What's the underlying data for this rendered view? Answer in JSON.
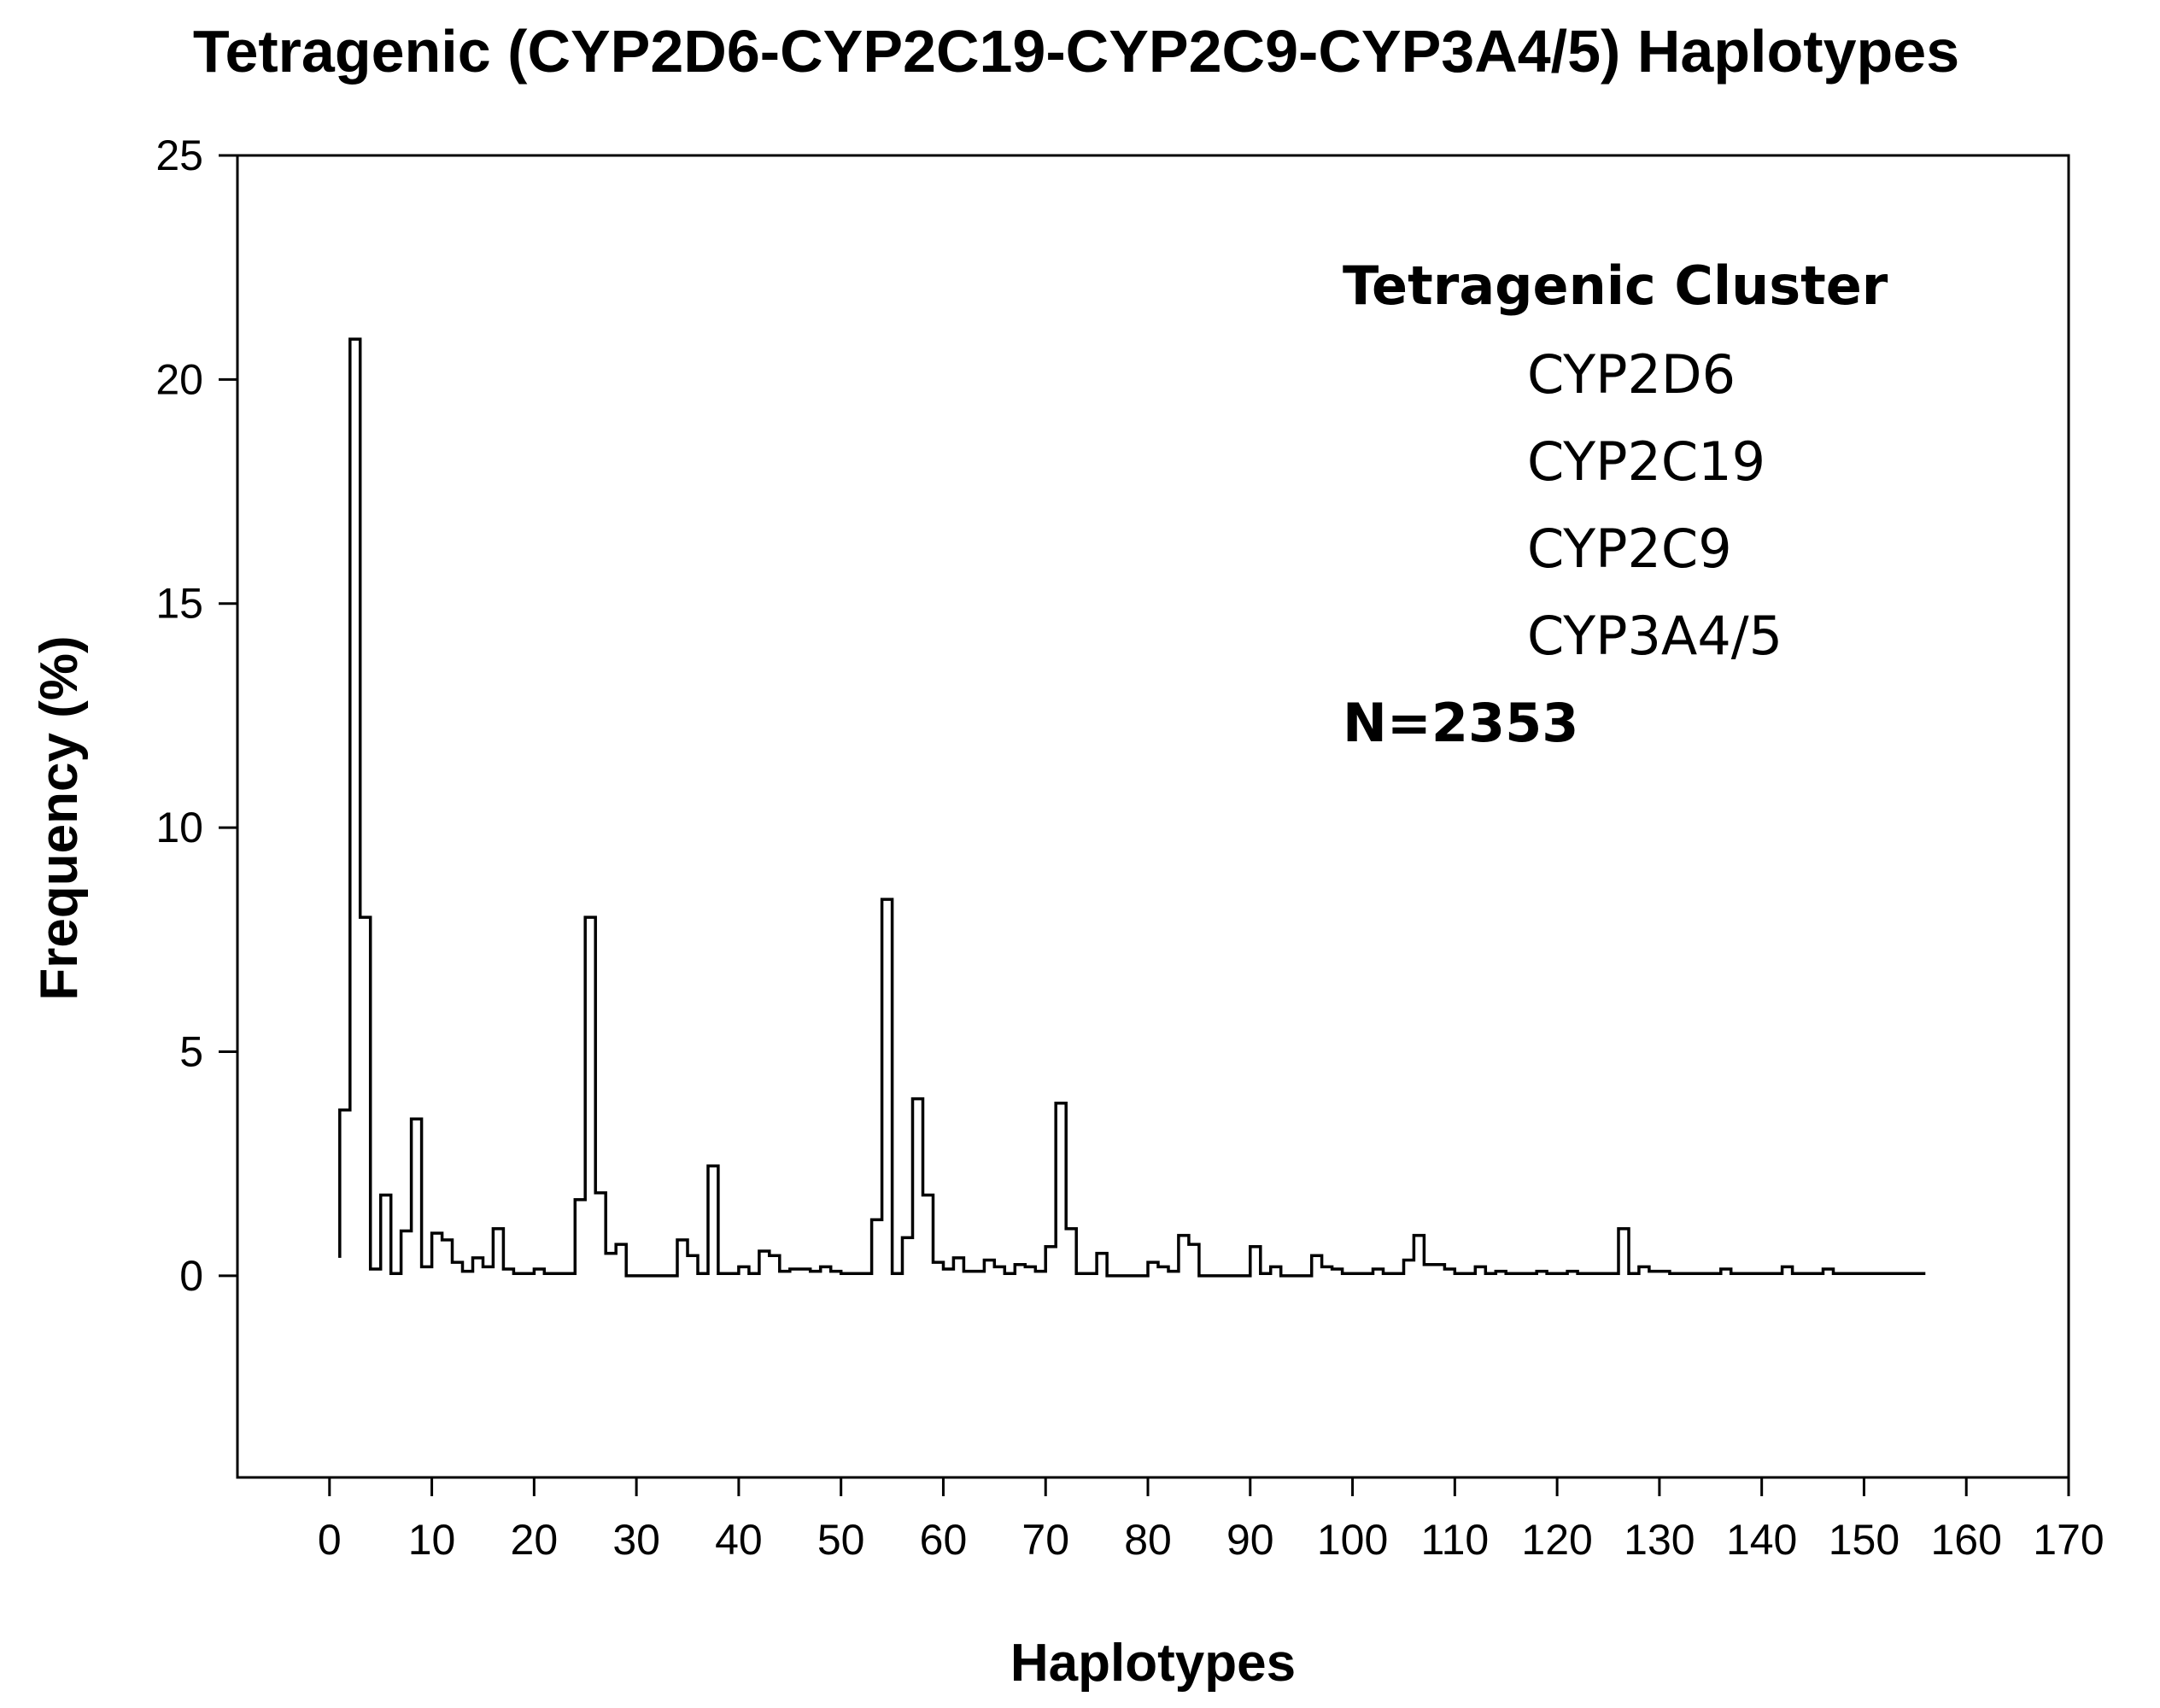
{
  "chart_data": {
    "type": "line",
    "title": "Tetragenic (CYP2D6-CYP2C19-CYP2C9-CYP3A4/5) Haplotypes",
    "xlabel": "Haplotypes",
    "ylabel": "Frequency (%)",
    "xlim": [
      -9,
      170
    ],
    "ylim": [
      -4.5,
      25
    ],
    "x_ticks": [
      0,
      10,
      20,
      30,
      40,
      50,
      60,
      70,
      80,
      90,
      100,
      110,
      120,
      130,
      140,
      150,
      160,
      170
    ],
    "y_ticks": [
      0,
      5,
      10,
      15,
      20,
      25
    ],
    "grid": false,
    "line_style": "step",
    "series": [
      {
        "values": [
          [
            1,
            0.4
          ],
          [
            1,
            3.7
          ],
          [
            2,
            3.7
          ],
          [
            2,
            20.9
          ],
          [
            3,
            20.9
          ],
          [
            3,
            8.0
          ],
          [
            4,
            8.0
          ],
          [
            4,
            0.15
          ],
          [
            5,
            0.15
          ],
          [
            5,
            1.8
          ],
          [
            6,
            1.8
          ],
          [
            6,
            0.05
          ],
          [
            7,
            0.05
          ],
          [
            7,
            1.0
          ],
          [
            8,
            1.0
          ],
          [
            8,
            3.5
          ],
          [
            9,
            3.5
          ],
          [
            9,
            0.2
          ],
          [
            10,
            0.2
          ],
          [
            10,
            0.95
          ],
          [
            11,
            0.95
          ],
          [
            11,
            0.8
          ],
          [
            12,
            0.8
          ],
          [
            12,
            0.3
          ],
          [
            13,
            0.3
          ],
          [
            13,
            0.1
          ],
          [
            14,
            0.1
          ],
          [
            14,
            0.4
          ],
          [
            15,
            0.4
          ],
          [
            15,
            0.2
          ],
          [
            16,
            0.2
          ],
          [
            16,
            1.05
          ],
          [
            17,
            1.05
          ],
          [
            17,
            0.15
          ],
          [
            18,
            0.15
          ],
          [
            18,
            0.05
          ],
          [
            20,
            0.05
          ],
          [
            20,
            0.15
          ],
          [
            21,
            0.15
          ],
          [
            21,
            0.05
          ],
          [
            24,
            0.05
          ],
          [
            24,
            1.7
          ],
          [
            25,
            1.7
          ],
          [
            25,
            8.0
          ],
          [
            26,
            8.0
          ],
          [
            26,
            1.85
          ],
          [
            27,
            1.85
          ],
          [
            27,
            0.5
          ],
          [
            28,
            0.5
          ],
          [
            28,
            0.7
          ],
          [
            29,
            0.7
          ],
          [
            29,
            0.0
          ],
          [
            34,
            0.0
          ],
          [
            34,
            0.8
          ],
          [
            35,
            0.8
          ],
          [
            35,
            0.45
          ],
          [
            36,
            0.45
          ],
          [
            36,
            0.05
          ],
          [
            37,
            0.05
          ],
          [
            37,
            2.45
          ],
          [
            38,
            2.45
          ],
          [
            38,
            0.05
          ],
          [
            40,
            0.05
          ],
          [
            40,
            0.2
          ],
          [
            41,
            0.2
          ],
          [
            41,
            0.05
          ],
          [
            42,
            0.05
          ],
          [
            42,
            0.55
          ],
          [
            43,
            0.55
          ],
          [
            43,
            0.45
          ],
          [
            44,
            0.45
          ],
          [
            44,
            0.1
          ],
          [
            45,
            0.1
          ],
          [
            45,
            0.15
          ],
          [
            47,
            0.15
          ],
          [
            47,
            0.1
          ],
          [
            48,
            0.1
          ],
          [
            48,
            0.2
          ],
          [
            49,
            0.2
          ],
          [
            49,
            0.1
          ],
          [
            50,
            0.1
          ],
          [
            50,
            0.05
          ],
          [
            53,
            0.05
          ],
          [
            53,
            1.25
          ],
          [
            54,
            1.25
          ],
          [
            54,
            8.4
          ],
          [
            55,
            8.4
          ],
          [
            55,
            0.05
          ],
          [
            56,
            0.05
          ],
          [
            56,
            0.85
          ],
          [
            57,
            0.85
          ],
          [
            57,
            3.95
          ],
          [
            58,
            3.95
          ],
          [
            58,
            1.8
          ],
          [
            59,
            1.8
          ],
          [
            59,
            0.3
          ],
          [
            60,
            0.3
          ],
          [
            60,
            0.15
          ],
          [
            61,
            0.15
          ],
          [
            61,
            0.4
          ],
          [
            62,
            0.4
          ],
          [
            62,
            0.1
          ],
          [
            64,
            0.1
          ],
          [
            64,
            0.35
          ],
          [
            65,
            0.35
          ],
          [
            65,
            0.2
          ],
          [
            66,
            0.2
          ],
          [
            66,
            0.05
          ],
          [
            67,
            0.05
          ],
          [
            67,
            0.25
          ],
          [
            68,
            0.25
          ],
          [
            68,
            0.2
          ],
          [
            69,
            0.2
          ],
          [
            69,
            0.1
          ],
          [
            70,
            0.1
          ],
          [
            70,
            0.65
          ],
          [
            71,
            0.65
          ],
          [
            71,
            3.85
          ],
          [
            72,
            3.85
          ],
          [
            72,
            1.05
          ],
          [
            73,
            1.05
          ],
          [
            73,
            0.05
          ],
          [
            75,
            0.05
          ],
          [
            75,
            0.5
          ],
          [
            76,
            0.5
          ],
          [
            76,
            0.0
          ],
          [
            80,
            0.0
          ],
          [
            80,
            0.3
          ],
          [
            81,
            0.3
          ],
          [
            81,
            0.2
          ],
          [
            82,
            0.2
          ],
          [
            82,
            0.1
          ],
          [
            83,
            0.1
          ],
          [
            83,
            0.9
          ],
          [
            84,
            0.9
          ],
          [
            84,
            0.7
          ],
          [
            85,
            0.7
          ],
          [
            85,
            0.0
          ],
          [
            90,
            0.0
          ],
          [
            90,
            0.65
          ],
          [
            91,
            0.65
          ],
          [
            91,
            0.05
          ],
          [
            92,
            0.05
          ],
          [
            92,
            0.2
          ],
          [
            93,
            0.2
          ],
          [
            93,
            0.0
          ],
          [
            96,
            0.0
          ],
          [
            96,
            0.45
          ],
          [
            97,
            0.45
          ],
          [
            97,
            0.2
          ],
          [
            98,
            0.2
          ],
          [
            98,
            0.15
          ],
          [
            99,
            0.15
          ],
          [
            99,
            0.05
          ],
          [
            102,
            0.05
          ],
          [
            102,
            0.15
          ],
          [
            103,
            0.15
          ],
          [
            103,
            0.05
          ],
          [
            105,
            0.05
          ],
          [
            105,
            0.35
          ],
          [
            106,
            0.35
          ],
          [
            106,
            0.9
          ],
          [
            107,
            0.9
          ],
          [
            107,
            0.25
          ],
          [
            109,
            0.25
          ],
          [
            109,
            0.15
          ],
          [
            110,
            0.15
          ],
          [
            110,
            0.05
          ],
          [
            112,
            0.05
          ],
          [
            112,
            0.2
          ],
          [
            113,
            0.2
          ],
          [
            113,
            0.05
          ],
          [
            114,
            0.05
          ],
          [
            114,
            0.1
          ],
          [
            115,
            0.1
          ],
          [
            115,
            0.05
          ],
          [
            118,
            0.05
          ],
          [
            118,
            0.1
          ],
          [
            119,
            0.1
          ],
          [
            119,
            0.05
          ],
          [
            121,
            0.05
          ],
          [
            121,
            0.1
          ],
          [
            122,
            0.1
          ],
          [
            122,
            0.05
          ],
          [
            126,
            0.05
          ],
          [
            126,
            1.05
          ],
          [
            127,
            1.05
          ],
          [
            127,
            0.05
          ],
          [
            128,
            0.05
          ],
          [
            128,
            0.2
          ],
          [
            129,
            0.2
          ],
          [
            129,
            0.1
          ],
          [
            131,
            0.1
          ],
          [
            131,
            0.05
          ],
          [
            136,
            0.05
          ],
          [
            136,
            0.15
          ],
          [
            137,
            0.15
          ],
          [
            137,
            0.05
          ],
          [
            142,
            0.05
          ],
          [
            142,
            0.2
          ],
          [
            143,
            0.2
          ],
          [
            143,
            0.05
          ],
          [
            146,
            0.05
          ],
          [
            146,
            0.15
          ],
          [
            147,
            0.15
          ],
          [
            147,
            0.05
          ],
          [
            156,
            0.05
          ]
        ]
      }
    ],
    "annotations": {
      "cluster_title": "Tetragenic Cluster",
      "genes": [
        "CYP2D6",
        "CYP2C19",
        "CYP2C9",
        "CYP3A4/5"
      ],
      "sample_size": "N=2353"
    }
  }
}
